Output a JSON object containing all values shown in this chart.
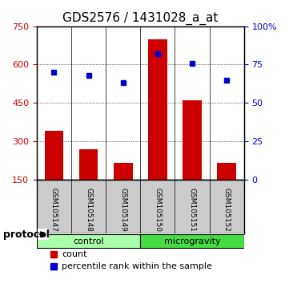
{
  "title": "GDS2576 / 1431028_a_at",
  "samples": [
    "GSM105147",
    "GSM105148",
    "GSM105149",
    "GSM105150",
    "GSM105151",
    "GSM105152"
  ],
  "counts": [
    340,
    270,
    215,
    700,
    460,
    215
  ],
  "percentile_ranks": [
    70,
    68,
    63,
    82,
    76,
    65
  ],
  "bar_color": "#cc0000",
  "dot_color": "#0000cc",
  "left_ylim": [
    150,
    750
  ],
  "left_yticks": [
    150,
    300,
    450,
    600,
    750
  ],
  "right_ylim": [
    0,
    100
  ],
  "right_yticks": [
    0,
    25,
    50,
    75,
    100
  ],
  "right_yticklabels": [
    "0",
    "25",
    "50",
    "75",
    "100%"
  ],
  "groups": [
    {
      "label": "control",
      "start": 0,
      "end": 3,
      "color": "#aaffaa"
    },
    {
      "label": "microgravity",
      "start": 3,
      "end": 6,
      "color": "#44dd44"
    }
  ],
  "protocol_label": "protocol",
  "legend_count_label": "count",
  "legend_pct_label": "percentile rank within the sample",
  "grid_color": "#000000",
  "background_color": "#ffffff",
  "sample_box_color": "#cccccc",
  "title_fontsize": 11,
  "tick_fontsize": 8,
  "legend_fontsize": 8
}
